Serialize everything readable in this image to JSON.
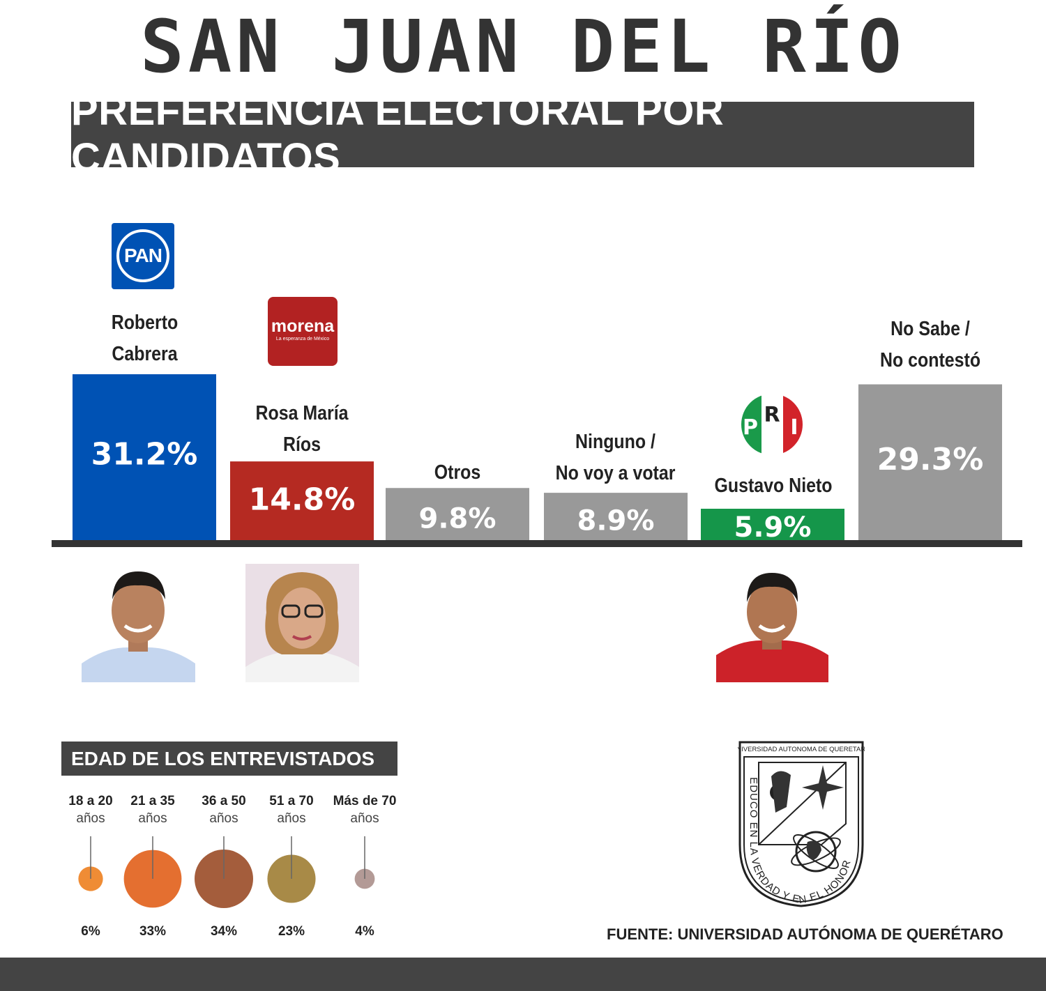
{
  "title": "SAN JUAN DEL RÍO",
  "subtitle": "PREFERENCIA ELECTORAL POR CANDIDATOS",
  "chart_data": {
    "type": "bar",
    "categories": [
      "Roberto Cabrera",
      "Rosa María Ríos",
      "Otros",
      "Ninguno / No voy a votar",
      "Gustavo Nieto",
      "No Sabe / No contestó"
    ],
    "label_lines": [
      [
        "Roberto",
        "Cabrera"
      ],
      [
        "Rosa María",
        "Ríos"
      ],
      [
        "Otros"
      ],
      [
        "Ninguno /",
        "No voy a votar"
      ],
      [
        "Gustavo Nieto"
      ],
      [
        "No Sabe /",
        "No contestó"
      ]
    ],
    "values": [
      31.2,
      14.8,
      9.8,
      8.9,
      5.9,
      29.3
    ],
    "value_labels": [
      "31.2%",
      "14.8%",
      "9.8%",
      "8.9%",
      "5.9%",
      "29.3%"
    ],
    "colors": [
      "#0052b4",
      "#b52a22",
      "#999999",
      "#999999",
      "#15964a",
      "#999999"
    ],
    "ylim": [
      0,
      31.2
    ]
  },
  "logos": {
    "pan": "PAN",
    "morena_word": "morena",
    "morena_slogan": "La esperanza de México",
    "pri": [
      "P",
      "R",
      "I"
    ]
  },
  "age_section": {
    "title": "EDAD DE LOS ENTREVISTADOS",
    "chart_data": {
      "type": "bubble",
      "categories": [
        [
          "18 a 20",
          "años"
        ],
        [
          "21 a 35",
          "años"
        ],
        [
          "36 a 50",
          "años"
        ],
        [
          "51 a 70",
          "años"
        ],
        [
          "Más de 70",
          "años"
        ]
      ],
      "values": [
        6,
        33,
        34,
        23,
        4
      ],
      "value_labels": [
        "6%",
        "33%",
        "34%",
        "23%",
        "4%"
      ],
      "colors": [
        "#ef8c35",
        "#e46f30",
        "#a45d3c",
        "#a88a47",
        "#b39a96"
      ]
    }
  },
  "seal": {
    "top_text": "UNIVERSIDAD AUTONOMA DE QUERETARO",
    "motto": "EDUCO EN LA VERDAD Y EN EL HONOR"
  },
  "source": "FUENTE: UNIVERSIDAD AUTÓNOMA DE QUERÉTARO"
}
